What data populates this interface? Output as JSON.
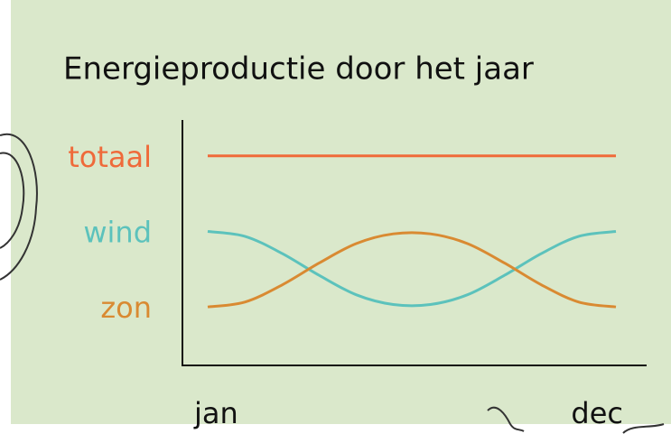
{
  "chart_data": {
    "type": "line",
    "title": "Energieproductie door het jaar",
    "categories": [
      "jan",
      null,
      null,
      null,
      null,
      null,
      null,
      null,
      null,
      null,
      null,
      "dec"
    ],
    "ylim": [
      0,
      100
    ],
    "series": [
      {
        "name": "totaal",
        "color": "#ef6a3a",
        "values": [
          86,
          86,
          86,
          86,
          86,
          86,
          86,
          86,
          86,
          86,
          86,
          86
        ]
      },
      {
        "name": "wind",
        "color": "#5cc2bc",
        "values": [
          55,
          53,
          46,
          37,
          29,
          25,
          25,
          29,
          37,
          46,
          53,
          55
        ]
      },
      {
        "name": "zon",
        "color": "#d98a32",
        "values": [
          24,
          26,
          33,
          42,
          50,
          54,
          54,
          50,
          42,
          33,
          26,
          24
        ]
      }
    ]
  }
}
